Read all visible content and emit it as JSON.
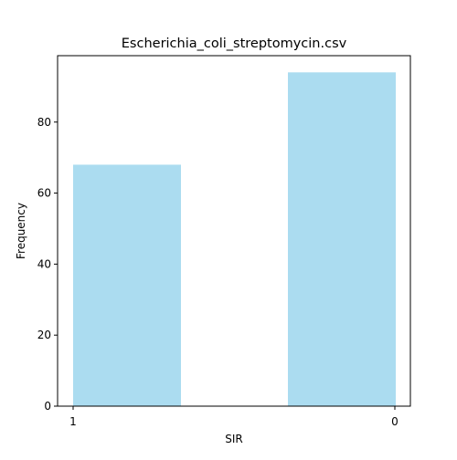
{
  "chart_data": {
    "type": "bar",
    "title": "Escherichia_coli_streptomycin.csv",
    "xlabel": "SIR",
    "ylabel": "Frequency",
    "categories": [
      "1",
      "0"
    ],
    "values": [
      68,
      94
    ],
    "ylim": [
      0,
      98.7
    ],
    "yticks": [
      0,
      20,
      40,
      60,
      80
    ],
    "bar_color": "#abdcf0",
    "grid": false,
    "legend": "none"
  }
}
